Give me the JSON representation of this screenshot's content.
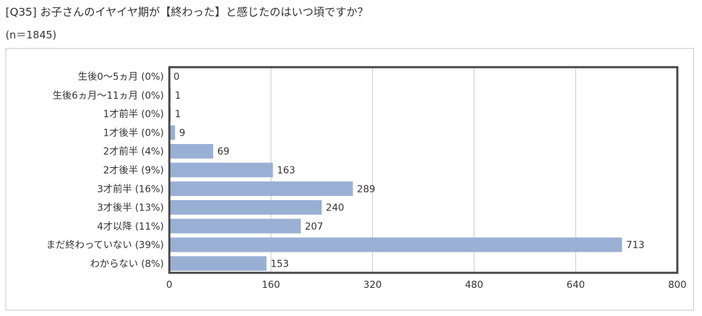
{
  "header": {
    "question": "[Q35] お子さんのイヤイヤ期が【終わった】と感じたのはいつ頃ですか？",
    "sample": "(n＝1845)"
  },
  "colors": {
    "bar": "#99b0d4",
    "plot_border": "#444444",
    "grid": "#c8c8c8",
    "frame_border": "#c8c8c8",
    "text": "#333333"
  },
  "chart_data": {
    "type": "bar",
    "orientation": "horizontal",
    "title": "",
    "xlabel": "",
    "ylabel": "",
    "categories": [
      "生後0〜5ヵ月 (0%)",
      "生後6ヵ月〜11ヵ月 (0%)",
      "1才前半 (0%)",
      "1才後半 (0%)",
      "2才前半 (4%)",
      "2才後半 (9%)",
      "3才前半 (16%)",
      "3才後半 (13%)",
      "4才以降 (11%)",
      "まだ終わっていない (39%)",
      "わからない (8%)"
    ],
    "values": [
      0,
      1,
      1,
      9,
      69,
      163,
      289,
      240,
      207,
      713,
      153
    ],
    "xlim": [
      0,
      800
    ],
    "xticks": [
      0,
      160,
      320,
      480,
      640,
      800
    ],
    "grid": true,
    "data_labels": true,
    "legend": "none"
  }
}
